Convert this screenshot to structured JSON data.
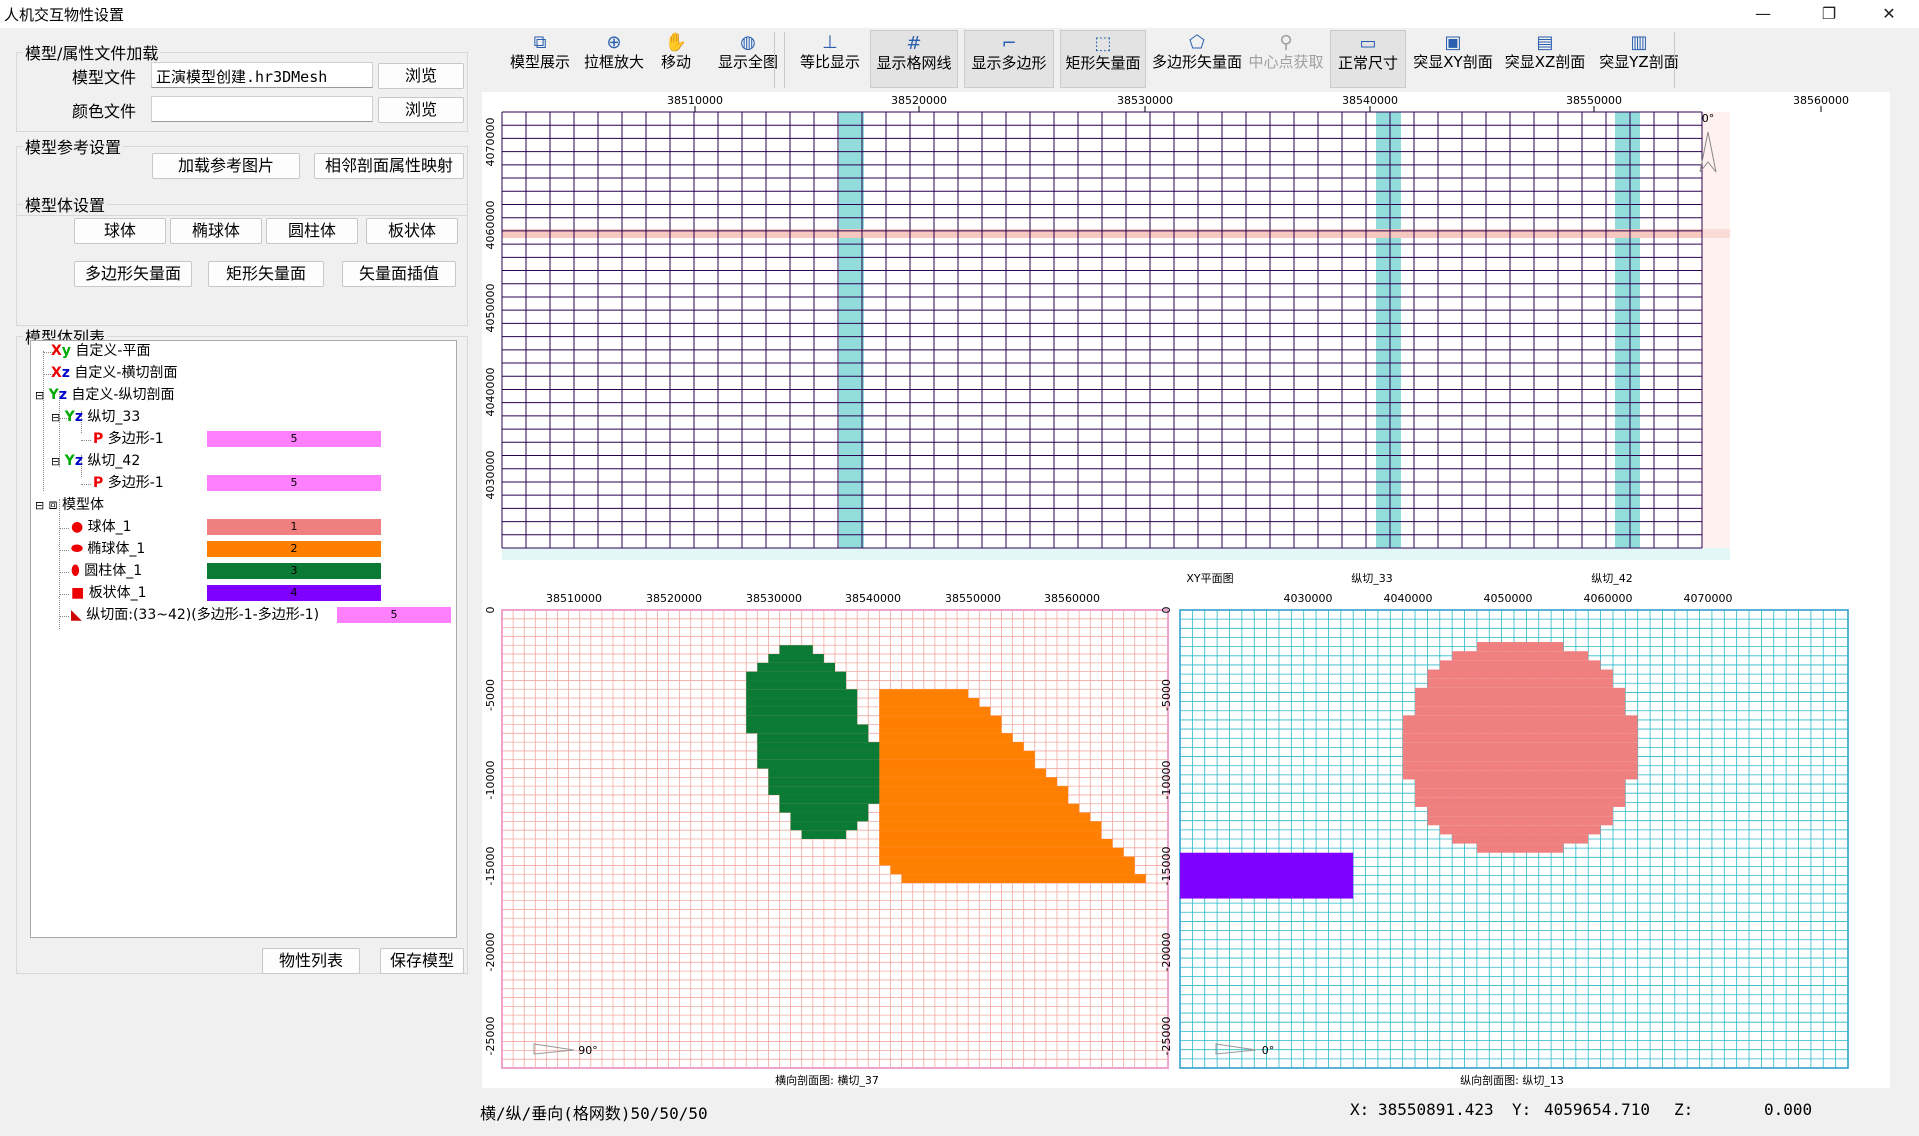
{
  "window": {
    "title": "人机交互物性设置",
    "minimize": "—",
    "restore": "❐",
    "close": "✕"
  },
  "file_group": {
    "legend": "模型/属性文件加载",
    "model_label": "模型文件",
    "model_value": "正演模型创建.hr3DMesh",
    "color_label": "颜色文件",
    "color_value": "",
    "browse1": "浏览",
    "browse2": "浏览"
  },
  "ref_group": {
    "legend": "模型参考设置",
    "load_image": "加载参考图片",
    "adjacent_map": "相邻剖面属性映射"
  },
  "body_group": {
    "legend": "模型体设置",
    "sphere": "球体",
    "ellipsoid": "椭球体",
    "cylinder": "圆柱体",
    "plate": "板状体",
    "polygon_vec": "多边形矢量面",
    "rect_vec": "矩形矢量面",
    "vec_interp": "矢量面插值"
  },
  "list_group": {
    "legend": "模型体列表"
  },
  "tree": {
    "xy_plane": "自定义-平面",
    "xz_section": "自定义-横切剖面",
    "yz_section": "自定义-纵切剖面",
    "yz33": "纵切_33",
    "yz33_poly": "多边形-1",
    "yz33_val": "5",
    "yz42": "纵切_42",
    "yz42_poly": "多边形-1",
    "yz42_val": "5",
    "model": "模型体",
    "bodies": [
      {
        "name": "球体_1",
        "value": "1",
        "color": "#f08080"
      },
      {
        "name": "椭球体_1",
        "value": "2",
        "color": "#ff8000"
      },
      {
        "name": "圆柱体_1",
        "value": "3",
        "color": "#0b7a35"
      },
      {
        "name": "板状体_1",
        "value": "4",
        "color": "#8000ff"
      }
    ],
    "section_body": "纵切面:(33~42)(多边形-1-多边形-1)",
    "section_value": "5",
    "pink": "#ff80ff"
  },
  "bottom_buttons": {
    "property_list": "物性列表",
    "save_model": "保存模型"
  },
  "toolbar": [
    {
      "label": "模型展示",
      "icon": "cube-icon"
    },
    {
      "label": "拉框放大",
      "icon": "zoom-icon"
    },
    {
      "label": "移动",
      "icon": "hand-icon"
    },
    {
      "label": "显示全图",
      "icon": "globe-icon"
    },
    {
      "label": "等比显示",
      "icon": "axis-icon"
    },
    {
      "label": "显示格网线",
      "icon": "grid-icon"
    },
    {
      "label": "显示多边形",
      "icon": "polygon-icon"
    },
    {
      "label": "矩形矢量面",
      "icon": "rect-cursor-icon"
    },
    {
      "label": "多边形矢量面",
      "icon": "poly-cursor-icon"
    },
    {
      "label": "中心点获取",
      "icon": "pin-icon"
    },
    {
      "label": "正常尺寸",
      "icon": "window-icon"
    },
    {
      "label": "突显XY剖面",
      "icon": "xy-icon"
    },
    {
      "label": "突显XZ剖面",
      "icon": "xz-icon"
    },
    {
      "label": "突显YZ剖面",
      "icon": "yz-icon"
    }
  ],
  "xy_view": {
    "x_ticks": [
      "38510000",
      "38520000",
      "38530000",
      "38540000",
      "38550000",
      "38560000"
    ],
    "y_ticks": [
      "4070000",
      "4060000",
      "4050000",
      "4040000",
      "4030000"
    ],
    "caption": "XY平面图",
    "sec33": "纵切_33",
    "sec42": "纵切_42",
    "north": "0°",
    "grid_color": "#2a0050",
    "highlight_yz": "#7fd6d6",
    "highlight_xz": "#f7c8c0"
  },
  "xz_view": {
    "x_ticks": [
      "38510000",
      "38520000",
      "38530000",
      "38540000",
      "38550000",
      "38560000"
    ],
    "z_ticks": [
      "0",
      "-5000",
      "-10000",
      "-15000",
      "-20000",
      "-25000"
    ],
    "caption": "横向剖面图: 横切_37",
    "angle": "90°",
    "grid_color": "#f4a9a0"
  },
  "yz_view": {
    "y_ticks": [
      "4030000",
      "4040000",
      "4050000",
      "4060000",
      "4070000"
    ],
    "z_ticks": [
      "0",
      "-5000",
      "-10000",
      "-15000",
      "-20000",
      "-25000"
    ],
    "caption": "纵向剖面图: 纵切_13",
    "angle": "0°",
    "grid_color": "#28b8c8"
  },
  "status": {
    "grid_count": "横/纵/垂向(格网数)50/50/50",
    "x_label": "X:",
    "x_value": "38550891.423",
    "y_label": "Y:",
    "y_value": "4059654.710",
    "z_label": "Z:",
    "z_value": "0.000"
  }
}
